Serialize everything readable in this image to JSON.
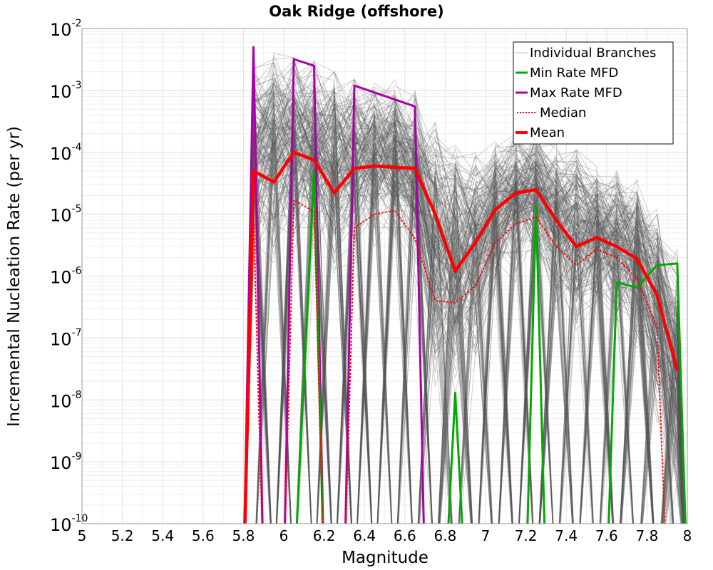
{
  "chart_data": {
    "type": "line",
    "title": "Oak Ridge (offshore)",
    "xlabel": "Magnitude",
    "ylabel": "Incremental Nucleation Rate (per yr)",
    "xlim": [
      5,
      8
    ],
    "ylim_log10": [
      -10,
      -2
    ],
    "y_scale": "log",
    "grid": true,
    "legend_position": "top-right",
    "x_ticks": [
      "5",
      "5.2",
      "5.4",
      "5.6",
      "5.8",
      "6",
      "6.2",
      "6.4",
      "6.6",
      "6.8",
      "7",
      "7.2",
      "7.4",
      "7.6",
      "7.8",
      "8"
    ],
    "y_ticks": [
      {
        "base": "10",
        "exp": "-10"
      },
      {
        "base": "10",
        "exp": "-9"
      },
      {
        "base": "10",
        "exp": "-8"
      },
      {
        "base": "10",
        "exp": "-7"
      },
      {
        "base": "10",
        "exp": "-6"
      },
      {
        "base": "10",
        "exp": "-5"
      },
      {
        "base": "10",
        "exp": "-4"
      },
      {
        "base": "10",
        "exp": "-3"
      },
      {
        "base": "10",
        "exp": "-2"
      }
    ],
    "series": [
      {
        "name": "Individual Branches",
        "color": "#555555",
        "style": "thin"
      },
      {
        "name": "Min Rate MFD",
        "color": "#00aa00",
        "style": "solid",
        "points": [
          [
            6.05,
            1e-11
          ],
          [
            6.15,
            5e-05
          ],
          [
            6.2,
            1e-11
          ],
          [
            6.8,
            1e-11
          ],
          [
            6.85,
            1.3e-08
          ],
          [
            6.9,
            1e-11
          ],
          [
            7.2,
            1e-11
          ],
          [
            7.25,
            1.4e-05
          ],
          [
            7.3,
            1e-11
          ],
          [
            7.6,
            1e-11
          ],
          [
            7.65,
            8e-07
          ],
          [
            7.75,
            6.5e-07
          ],
          [
            7.85,
            1.5e-06
          ],
          [
            7.95,
            1.6e-06
          ],
          [
            8.0,
            1e-11
          ]
        ]
      },
      {
        "name": "Max Rate MFD",
        "color": "#aa00aa",
        "style": "solid",
        "points": [
          [
            5.8,
            1e-11
          ],
          [
            5.85,
            0.005
          ],
          [
            5.9,
            1e-11
          ],
          [
            6.0,
            1e-11
          ],
          [
            6.05,
            0.0032
          ],
          [
            6.15,
            0.0025
          ],
          [
            6.2,
            1e-11
          ],
          [
            6.3,
            1e-11
          ],
          [
            6.35,
            0.0012
          ],
          [
            6.65,
            0.00055
          ],
          [
            6.7,
            1e-11
          ]
        ]
      },
      {
        "name": "Median",
        "color": "#ff0000",
        "style": "dotted",
        "points": [
          [
            5.8,
            1e-11
          ],
          [
            5.85,
            1e-05
          ],
          [
            5.9,
            1e-11
          ],
          [
            6.0,
            1e-11
          ],
          [
            6.05,
            1.7e-05
          ],
          [
            6.15,
            1.1e-05
          ],
          [
            6.2,
            1e-11
          ],
          [
            6.3,
            1e-11
          ],
          [
            6.35,
            6e-06
          ],
          [
            6.45,
            1e-05
          ],
          [
            6.55,
            1.15e-05
          ],
          [
            6.65,
            4e-06
          ],
          [
            6.75,
            4e-07
          ],
          [
            6.85,
            3.7e-07
          ],
          [
            6.95,
            7e-07
          ],
          [
            7.05,
            3.5e-06
          ],
          [
            7.15,
            7e-06
          ],
          [
            7.25,
            9e-06
          ],
          [
            7.35,
            3e-06
          ],
          [
            7.45,
            1.5e-06
          ],
          [
            7.55,
            2.7e-06
          ],
          [
            7.65,
            2e-06
          ],
          [
            7.75,
            9e-07
          ],
          [
            7.85,
            1.5e-07
          ],
          [
            7.9,
            1e-11
          ]
        ]
      },
      {
        "name": "Mean",
        "color": "#ff0000",
        "style": "thick",
        "points": [
          [
            5.8,
            1e-11
          ],
          [
            5.85,
            5e-05
          ],
          [
            5.95,
            3.3e-05
          ],
          [
            6.05,
            0.0001
          ],
          [
            6.15,
            7.5e-05
          ],
          [
            6.25,
            2.2e-05
          ],
          [
            6.35,
            5.5e-05
          ],
          [
            6.45,
            6e-05
          ],
          [
            6.55,
            5.7e-05
          ],
          [
            6.65,
            5.5e-05
          ],
          [
            6.75,
            1e-05
          ],
          [
            6.85,
            1.2e-06
          ],
          [
            6.95,
            3.5e-06
          ],
          [
            7.05,
            1.2e-05
          ],
          [
            7.15,
            2.2e-05
          ],
          [
            7.25,
            2.5e-05
          ],
          [
            7.35,
            8e-06
          ],
          [
            7.45,
            3e-06
          ],
          [
            7.55,
            4.2e-06
          ],
          [
            7.65,
            3e-06
          ],
          [
            7.75,
            1.9e-06
          ],
          [
            7.85,
            5e-07
          ],
          [
            7.95,
            3e-08
          ]
        ]
      }
    ],
    "branch_envelope": {
      "peaks": [
        [
          5.85,
          0.003
        ],
        [
          5.95,
          0.004
        ],
        [
          6.05,
          0.0035
        ],
        [
          6.15,
          0.003
        ],
        [
          6.25,
          0.002
        ],
        [
          6.35,
          0.0015
        ],
        [
          6.45,
          0.0013
        ],
        [
          6.55,
          0.0015
        ],
        [
          6.65,
          0.001
        ],
        [
          6.75,
          0.0003
        ],
        [
          6.85,
          0.00013
        ],
        [
          6.95,
          0.00012
        ],
        [
          7.05,
          0.00015
        ],
        [
          7.15,
          0.0002
        ],
        [
          7.25,
          0.00022
        ],
        [
          7.35,
          0.00014
        ],
        [
          7.45,
          0.00011
        ],
        [
          7.55,
          6e-05
        ],
        [
          7.65,
          5e-05
        ],
        [
          7.75,
          4e-05
        ],
        [
          7.85,
          1.5e-05
        ],
        [
          7.95,
          3e-06
        ]
      ],
      "typical_low": [
        [
          5.85,
          1e-06
        ],
        [
          5.95,
          2e-06
        ],
        [
          6.05,
          3e-06
        ],
        [
          6.15,
          2e-06
        ],
        [
          6.25,
          1e-06
        ],
        [
          6.35,
          2e-06
        ],
        [
          6.45,
          3e-06
        ],
        [
          6.55,
          3e-06
        ],
        [
          6.65,
          1e-06
        ],
        [
          6.75,
          1e-08
        ],
        [
          6.85,
          1e-08
        ],
        [
          6.95,
          3e-08
        ],
        [
          7.05,
          3e-07
        ],
        [
          7.15,
          1e-06
        ],
        [
          7.25,
          1e-06
        ],
        [
          7.35,
          2e-07
        ],
        [
          7.45,
          1e-07
        ],
        [
          7.55,
          2e-07
        ],
        [
          7.65,
          1e-07
        ],
        [
          7.75,
          5e-08
        ],
        [
          7.85,
          3e-09
        ],
        [
          7.95,
          1e-10
        ]
      ]
    }
  }
}
